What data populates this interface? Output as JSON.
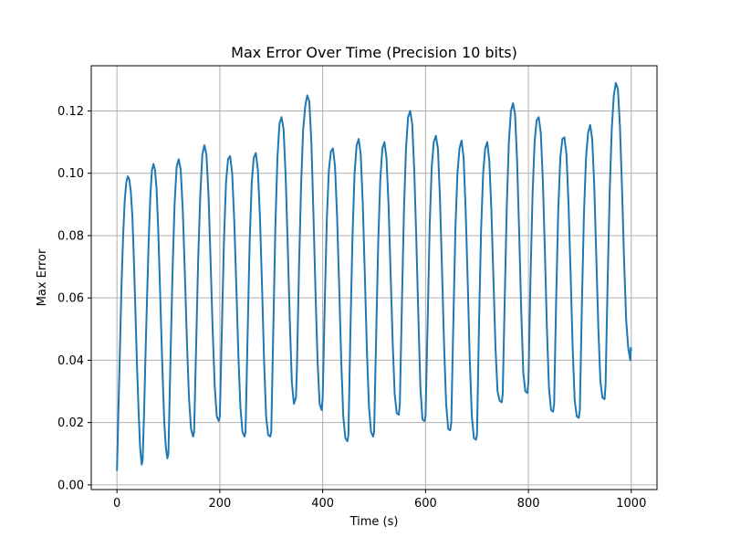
{
  "chart_data": {
    "type": "line",
    "title": "Max Error Over Time (Precision 10 bits)",
    "xlabel": "Time (s)",
    "ylabel": "Max Error",
    "xlim": [
      -50,
      1050
    ],
    "ylim": [
      -0.0015,
      0.1345
    ],
    "x_ticks": [
      0,
      200,
      400,
      600,
      800,
      1000
    ],
    "x_tick_labels": [
      "0",
      "200",
      "400",
      "600",
      "800",
      "1000"
    ],
    "y_ticks": [
      0.0,
      0.02,
      0.04,
      0.06,
      0.08,
      0.1,
      0.12
    ],
    "y_tick_labels": [
      "0.00",
      "0.02",
      "0.04",
      "0.06",
      "0.08",
      "0.10",
      "0.12"
    ],
    "grid": true,
    "series": [
      {
        "color": "#1f77b4",
        "x": [
          0,
          3,
          6,
          9,
          12,
          15,
          18,
          21,
          24,
          27,
          30,
          33,
          36,
          39,
          42,
          45,
          48,
          50,
          53,
          56,
          59,
          62,
          65,
          68,
          71,
          74,
          77,
          80,
          83,
          86,
          89,
          92,
          95,
          98,
          100,
          104,
          108,
          112,
          116,
          120,
          124,
          128,
          132,
          136,
          140,
          144,
          148,
          150,
          154,
          158,
          162,
          166,
          170,
          174,
          178,
          182,
          186,
          190,
          194,
          198,
          200,
          204,
          208,
          212,
          216,
          220,
          224,
          228,
          232,
          236,
          240,
          244,
          248,
          250,
          254,
          258,
          262,
          266,
          270,
          274,
          278,
          282,
          286,
          290,
          294,
          298,
          300,
          304,
          308,
          312,
          316,
          320,
          324,
          328,
          332,
          336,
          340,
          344,
          348,
          350,
          354,
          358,
          362,
          366,
          370,
          374,
          378,
          382,
          386,
          390,
          394,
          398,
          400,
          404,
          408,
          412,
          416,
          420,
          424,
          428,
          432,
          436,
          440,
          444,
          448,
          450,
          454,
          458,
          462,
          466,
          470,
          474,
          478,
          482,
          486,
          490,
          494,
          498,
          500,
          504,
          508,
          512,
          516,
          520,
          524,
          528,
          532,
          536,
          540,
          544,
          548,
          550,
          554,
          558,
          562,
          566,
          570,
          574,
          578,
          582,
          586,
          590,
          594,
          598,
          600,
          604,
          608,
          612,
          616,
          620,
          624,
          628,
          632,
          636,
          640,
          644,
          648,
          650,
          654,
          658,
          662,
          666,
          670,
          674,
          678,
          682,
          686,
          690,
          694,
          698,
          700,
          704,
          708,
          712,
          716,
          720,
          724,
          728,
          732,
          736,
          740,
          744,
          748,
          750,
          754,
          758,
          762,
          766,
          770,
          774,
          778,
          782,
          786,
          790,
          794,
          798,
          800,
          804,
          808,
          812,
          816,
          820,
          824,
          828,
          832,
          836,
          840,
          844,
          848,
          850,
          854,
          858,
          862,
          866,
          870,
          874,
          878,
          882,
          886,
          890,
          894,
          898,
          900,
          904,
          908,
          912,
          916,
          920,
          924,
          928,
          932,
          936,
          940,
          944,
          948,
          950,
          954,
          958,
          962,
          966,
          970,
          974,
          978,
          982,
          986,
          990,
          994,
          998,
          999,
          1000
        ],
        "y": [
          0.0045,
          0.025,
          0.045,
          0.065,
          0.08,
          0.091,
          0.097,
          0.099,
          0.098,
          0.094,
          0.086,
          0.072,
          0.055,
          0.038,
          0.024,
          0.012,
          0.0065,
          0.008,
          0.025,
          0.045,
          0.063,
          0.08,
          0.093,
          0.101,
          0.103,
          0.101,
          0.095,
          0.083,
          0.067,
          0.05,
          0.034,
          0.02,
          0.012,
          0.0085,
          0.01,
          0.04,
          0.068,
          0.09,
          0.102,
          0.1045,
          0.101,
          0.088,
          0.068,
          0.046,
          0.028,
          0.018,
          0.0155,
          0.017,
          0.045,
          0.073,
          0.093,
          0.106,
          0.109,
          0.106,
          0.093,
          0.072,
          0.05,
          0.032,
          0.022,
          0.0205,
          0.022,
          0.05,
          0.078,
          0.097,
          0.1045,
          0.1055,
          0.1,
          0.085,
          0.064,
          0.042,
          0.025,
          0.017,
          0.0155,
          0.017,
          0.048,
          0.078,
          0.097,
          0.105,
          0.1065,
          0.101,
          0.086,
          0.064,
          0.04,
          0.022,
          0.016,
          0.0155,
          0.017,
          0.05,
          0.083,
          0.105,
          0.116,
          0.118,
          0.114,
          0.099,
          0.077,
          0.053,
          0.033,
          0.026,
          0.028,
          0.038,
          0.07,
          0.096,
          0.114,
          0.1215,
          0.125,
          0.123,
          0.11,
          0.087,
          0.062,
          0.04,
          0.026,
          0.024,
          0.028,
          0.058,
          0.085,
          0.101,
          0.107,
          0.108,
          0.102,
          0.086,
          0.064,
          0.04,
          0.022,
          0.015,
          0.014,
          0.016,
          0.05,
          0.08,
          0.1,
          0.109,
          0.111,
          0.106,
          0.09,
          0.067,
          0.043,
          0.025,
          0.017,
          0.0155,
          0.017,
          0.048,
          0.078,
          0.098,
          0.108,
          0.11,
          0.105,
          0.09,
          0.068,
          0.046,
          0.029,
          0.023,
          0.0225,
          0.026,
          0.058,
          0.088,
          0.108,
          0.118,
          0.12,
          0.116,
          0.101,
          0.079,
          0.054,
          0.031,
          0.021,
          0.0205,
          0.022,
          0.052,
          0.083,
          0.102,
          0.11,
          0.112,
          0.108,
          0.092,
          0.069,
          0.045,
          0.026,
          0.018,
          0.0175,
          0.02,
          0.052,
          0.082,
          0.1,
          0.108,
          0.1105,
          0.105,
          0.088,
          0.065,
          0.04,
          0.022,
          0.015,
          0.0145,
          0.016,
          0.052,
          0.082,
          0.1,
          0.108,
          0.11,
          0.104,
          0.088,
          0.066,
          0.044,
          0.03,
          0.027,
          0.0265,
          0.029,
          0.06,
          0.09,
          0.11,
          0.12,
          0.1225,
          0.119,
          0.104,
          0.081,
          0.056,
          0.036,
          0.03,
          0.0295,
          0.033,
          0.066,
          0.093,
          0.11,
          0.117,
          0.118,
          0.113,
          0.098,
          0.075,
          0.05,
          0.031,
          0.024,
          0.0235,
          0.026,
          0.06,
          0.088,
          0.105,
          0.111,
          0.1115,
          0.106,
          0.09,
          0.068,
          0.044,
          0.027,
          0.022,
          0.0215,
          0.024,
          0.058,
          0.087,
          0.105,
          0.113,
          0.1155,
          0.111,
          0.096,
          0.073,
          0.05,
          0.033,
          0.028,
          0.0275,
          0.032,
          0.065,
          0.094,
          0.114,
          0.125,
          0.129,
          0.127,
          0.115,
          0.095,
          0.072,
          0.053,
          0.044,
          0.04,
          0.044,
          0.043
        ]
      }
    ]
  }
}
